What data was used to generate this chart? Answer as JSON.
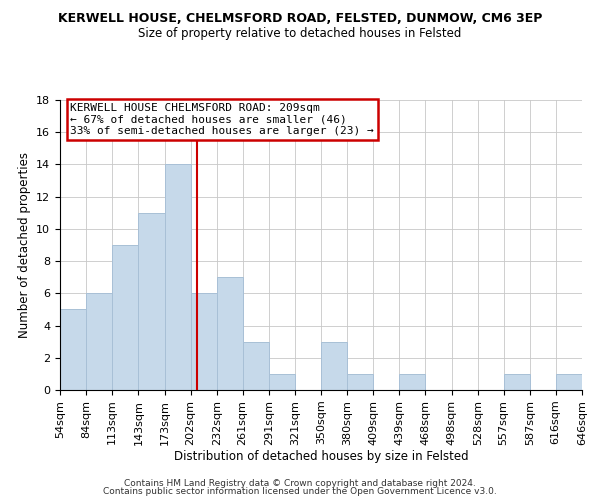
{
  "title": "KERWELL HOUSE, CHELMSFORD ROAD, FELSTED, DUNMOW, CM6 3EP",
  "subtitle": "Size of property relative to detached houses in Felsted",
  "xlabel": "Distribution of detached houses by size in Felsted",
  "ylabel": "Number of detached properties",
  "bar_color": "#c6d9ea",
  "bar_edgecolor": "#a8c0d6",
  "vline_x": 209,
  "vline_color": "#cc0000",
  "bins_left": [
    54,
    84,
    113,
    143,
    173,
    202,
    232,
    261,
    291,
    321,
    350,
    380,
    409,
    439,
    468,
    498,
    528,
    557,
    587,
    616
  ],
  "bins_right": [
    84,
    113,
    143,
    173,
    202,
    232,
    261,
    291,
    321,
    350,
    380,
    409,
    439,
    468,
    498,
    528,
    557,
    587,
    616,
    646
  ],
  "counts": [
    5,
    6,
    9,
    11,
    14,
    6,
    7,
    3,
    1,
    0,
    3,
    1,
    0,
    1,
    0,
    0,
    0,
    1,
    0,
    1
  ],
  "tick_labels": [
    "54sqm",
    "84sqm",
    "113sqm",
    "143sqm",
    "173sqm",
    "202sqm",
    "232sqm",
    "261sqm",
    "291sqm",
    "321sqm",
    "350sqm",
    "380sqm",
    "409sqm",
    "439sqm",
    "468sqm",
    "498sqm",
    "528sqm",
    "557sqm",
    "587sqm",
    "616sqm",
    "646sqm"
  ],
  "annotation_line1": "KERWELL HOUSE CHELMSFORD ROAD: 209sqm",
  "annotation_line2": "← 67% of detached houses are smaller (46)",
  "annotation_line3": "33% of semi-detached houses are larger (23) →",
  "ylim": [
    0,
    18
  ],
  "yticks": [
    0,
    2,
    4,
    6,
    8,
    10,
    12,
    14,
    16,
    18
  ],
  "footer1": "Contains HM Land Registry data © Crown copyright and database right 2024.",
  "footer2": "Contains public sector information licensed under the Open Government Licence v3.0.",
  "background_color": "#ffffff",
  "annotation_box_facecolor": "#ffffff",
  "annotation_box_edgecolor": "#cc0000",
  "title_fontsize": 9,
  "subtitle_fontsize": 8.5,
  "axis_label_fontsize": 8.5,
  "tick_fontsize": 8,
  "annotation_fontsize": 8,
  "footer_fontsize": 6.5
}
